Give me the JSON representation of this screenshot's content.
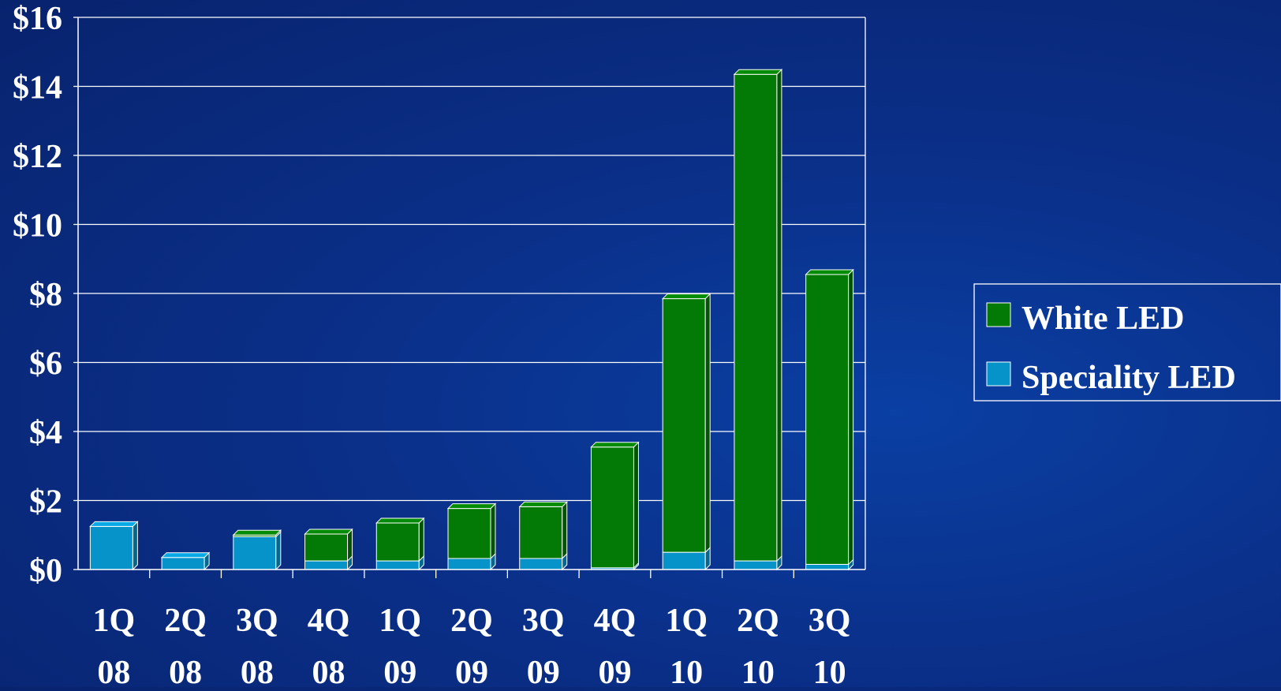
{
  "colors": {
    "background": "#0a2f88",
    "white_led": "#047a06",
    "speciality_led": "#0693c9",
    "grid": "#ffffff",
    "text": "#ffffff"
  },
  "chart_data": {
    "type": "bar",
    "stacked": true,
    "title": "",
    "xlabel": "",
    "ylabel": "",
    "ylim": [
      0,
      16
    ],
    "yticks": [
      "$0",
      "$2",
      "$4",
      "$6",
      "$8",
      "$10",
      "$12",
      "$14",
      "$16"
    ],
    "categories": [
      [
        "1Q",
        "08"
      ],
      [
        "2Q",
        "08"
      ],
      [
        "3Q",
        "08"
      ],
      [
        "4Q",
        "08"
      ],
      [
        "1Q",
        "09"
      ],
      [
        "2Q",
        "09"
      ],
      [
        "3Q",
        "09"
      ],
      [
        "4Q",
        "09"
      ],
      [
        "1Q",
        "10"
      ],
      [
        "2Q",
        "10"
      ],
      [
        "3Q",
        "10"
      ]
    ],
    "series": [
      {
        "name": "Speciality LED",
        "color": "#0693c9",
        "values": [
          1.25,
          0.35,
          0.95,
          0.25,
          0.25,
          0.32,
          0.32,
          0.05,
          0.5,
          0.25,
          0.15
        ]
      },
      {
        "name": "White LED",
        "color": "#047a06",
        "values": [
          0.0,
          0.0,
          0.05,
          0.78,
          1.1,
          1.45,
          1.5,
          3.5,
          7.35,
          14.1,
          8.4
        ]
      }
    ],
    "grid": true,
    "legend": {
      "placement": "right",
      "entries": [
        "White LED",
        "Speciality LED"
      ]
    }
  }
}
